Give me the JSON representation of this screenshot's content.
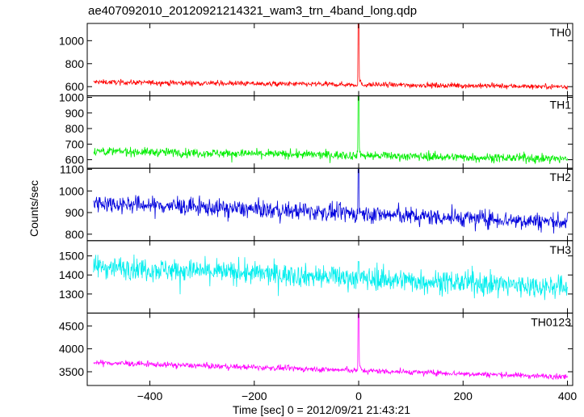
{
  "figure_title": "ae407092010_20120921214321_wam3_trn_4band_long.qdp",
  "xlabel": "Time [sec] 0 = 2012/09/21 21:43:21",
  "ylabel": "Counts/sec",
  "chart_data": {
    "type": "line",
    "title": "ae407092010_20120921214321_wam3_trn_4band_long.qdp",
    "xlabel": "Time [sec] 0 = 2012/09/21 21:43:21",
    "ylabel": "Counts/sec",
    "xlim": [
      -520,
      410
    ],
    "x_ticks": [
      -400,
      -200,
      0,
      200,
      400
    ],
    "x_start": -508,
    "x_end": 400,
    "grid": false,
    "panels": [
      {
        "name": "TH0",
        "color": "#ff0000",
        "ylim": [
          520,
          1150
        ],
        "y_ticks": [
          600,
          800,
          1000
        ],
        "baseline_start": 640,
        "baseline_end": 600,
        "noise_amplitude": 22,
        "peak_x": 0,
        "peak_value": 1150
      },
      {
        "name": "TH1",
        "color": "#00ee00",
        "ylim": [
          545,
          1010
        ],
        "y_ticks": [
          600,
          700,
          800,
          900,
          1000
        ],
        "baseline_start": 655,
        "baseline_end": 605,
        "noise_amplitude": 28,
        "peak_x": 0,
        "peak_value": 1010
      },
      {
        "name": "TH2",
        "color": "#0000dd",
        "ylim": [
          770,
          1105
        ],
        "y_ticks": [
          800,
          900,
          1000,
          1100
        ],
        "baseline_start": 945,
        "baseline_end": 855,
        "noise_amplitude": 40,
        "peak_x": 0,
        "peak_value": 1100
      },
      {
        "name": "TH3",
        "color": "#00eeee",
        "ylim": [
          1200,
          1580
        ],
        "y_ticks": [
          1300,
          1400,
          1500
        ],
        "baseline_start": 1445,
        "baseline_end": 1335,
        "noise_amplitude": 60,
        "peak_x": 0,
        "peak_value": 1470
      },
      {
        "name": "TH0123",
        "color": "#ff00ff",
        "ylim": [
          3200,
          4780
        ],
        "y_ticks": [
          3500,
          4000,
          4500
        ],
        "baseline_start": 3700,
        "baseline_end": 3390,
        "noise_amplitude": 60,
        "peak_x": 0,
        "peak_value": 4780
      }
    ]
  }
}
